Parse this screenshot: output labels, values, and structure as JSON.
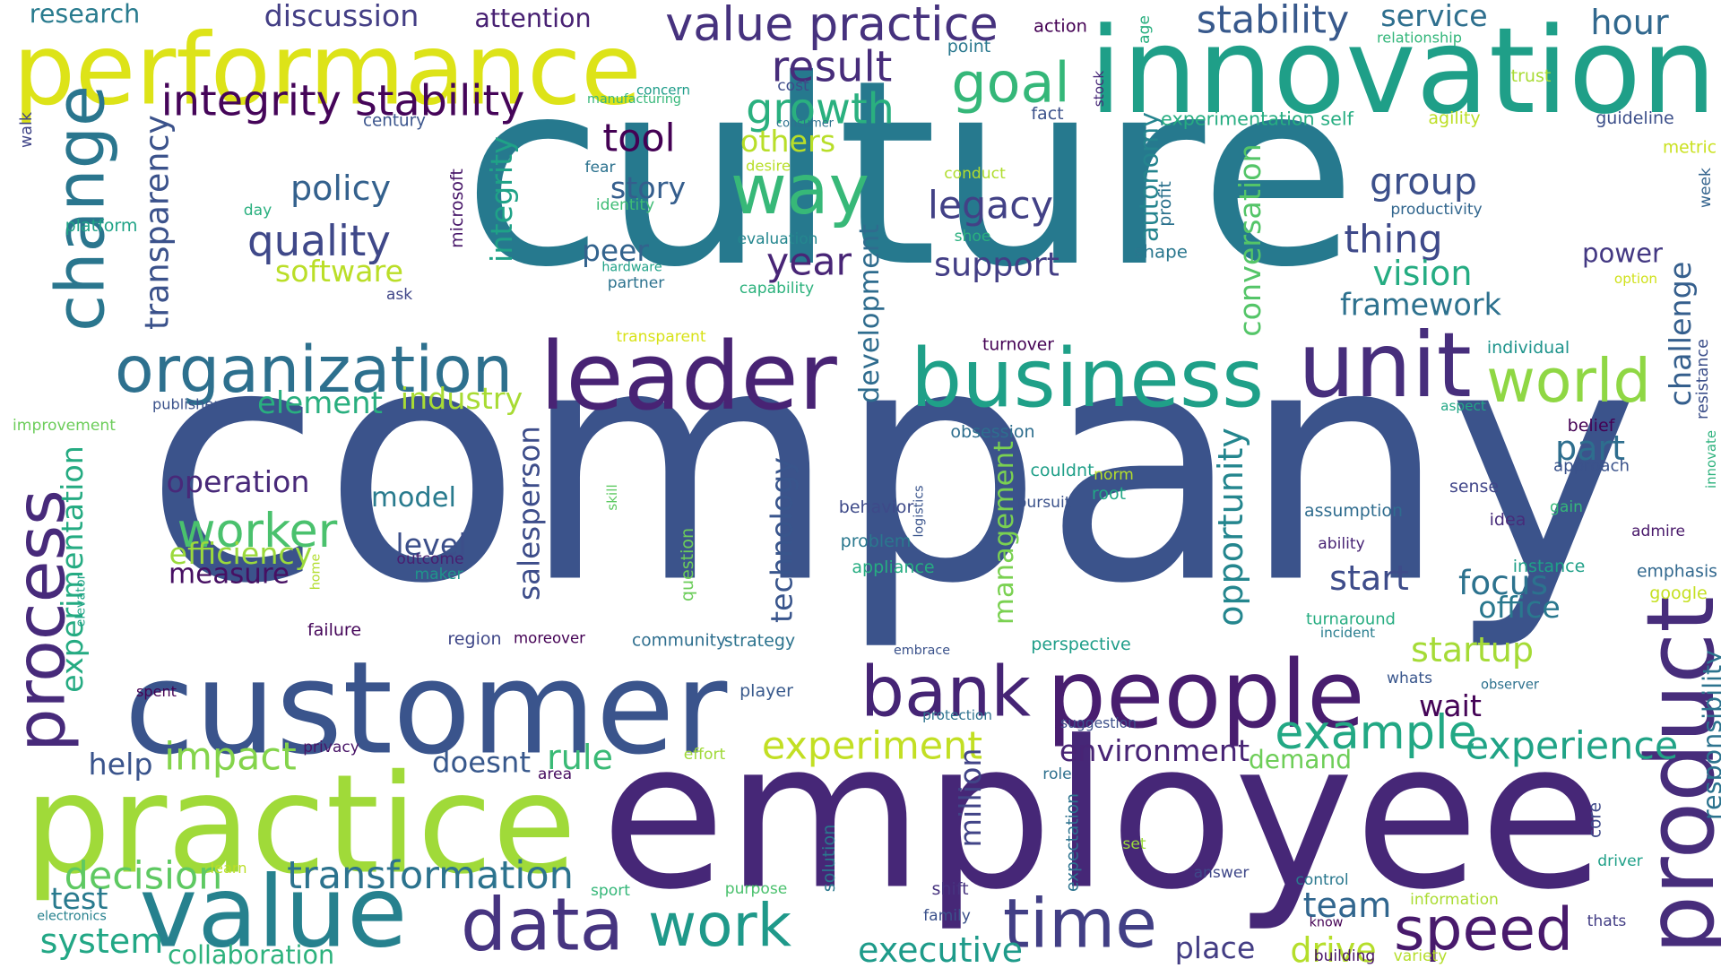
{
  "words": [
    {
      "text": "culture",
      "color": "#26798e"
    },
    {
      "text": "company",
      "color": "#3b538b"
    },
    {
      "text": "employee",
      "color": "#462777"
    },
    {
      "text": "innovation",
      "color": "#1f9f88"
    },
    {
      "text": "performance",
      "color": "#dde318"
    },
    {
      "text": "customer",
      "color": "#3a548c"
    },
    {
      "text": "practice",
      "color": "#a0da39"
    },
    {
      "text": "value",
      "color": "#26818e"
    },
    {
      "text": "leader",
      "color": "#482374"
    },
    {
      "text": "unit",
      "color": "#472e7c"
    },
    {
      "text": "business",
      "color": "#1fa088"
    },
    {
      "text": "people",
      "color": "#481d6f"
    },
    {
      "text": "bank",
      "color": "#452475"
    },
    {
      "text": "product",
      "color": "#472d7b"
    },
    {
      "text": "change",
      "color": "#2a768e"
    },
    {
      "text": "process",
      "color": "#472a7a"
    },
    {
      "text": "organization",
      "color": "#2d708e"
    },
    {
      "text": "data",
      "color": "#463480"
    },
    {
      "text": "time",
      "color": "#423f85"
    },
    {
      "text": "work",
      "color": "#1f998a"
    },
    {
      "text": "speed",
      "color": "#481a6c"
    },
    {
      "text": "way",
      "color": "#37b878"
    },
    {
      "text": "value practice",
      "color": "#46327e"
    },
    {
      "text": "goal",
      "color": "#35b779"
    },
    {
      "text": "world",
      "color": "#8fd744"
    },
    {
      "text": "integrity stability",
      "color": "#450559"
    },
    {
      "text": "stability",
      "color": "#38598c"
    },
    {
      "text": "growth",
      "color": "#2ab07f"
    },
    {
      "text": "result",
      "color": "#472c7a"
    },
    {
      "text": "hour",
      "color": "#31688e"
    },
    {
      "text": "tool",
      "color": "#440154"
    },
    {
      "text": "example",
      "color": "#22a884"
    },
    {
      "text": "experience",
      "color": "#20a386"
    },
    {
      "text": "transformation",
      "color": "#2c738e"
    },
    {
      "text": "decision",
      "color": "#5ec962"
    },
    {
      "text": "impact",
      "color": "#84d44b"
    },
    {
      "text": "worker",
      "color": "#4ac16d"
    },
    {
      "text": "executive",
      "color": "#1e9b8a"
    },
    {
      "text": "drive",
      "color": "#b5de2b"
    },
    {
      "text": "experiment",
      "color": "#c2df23"
    },
    {
      "text": "startup",
      "color": "#a5db36"
    },
    {
      "text": "team",
      "color": "#31668e"
    },
    {
      "text": "system",
      "color": "#22a785"
    },
    {
      "text": "rule",
      "color": "#3aba76"
    },
    {
      "text": "quality",
      "color": "#3f4889"
    },
    {
      "text": "policy",
      "color": "#34618d"
    },
    {
      "text": "legacy",
      "color": "#424186"
    },
    {
      "text": "support",
      "color": "#433e85"
    },
    {
      "text": "group",
      "color": "#3c508b"
    },
    {
      "text": "thing",
      "color": "#3e4989"
    },
    {
      "text": "vision",
      "color": "#25ac82"
    },
    {
      "text": "framework",
      "color": "#2d718e"
    },
    {
      "text": "year",
      "color": "#482576"
    },
    {
      "text": "peer",
      "color": "#33638d"
    },
    {
      "text": "story",
      "color": "#355e8d"
    },
    {
      "text": "others",
      "color": "#b8de29"
    },
    {
      "text": "software",
      "color": "#bade28"
    },
    {
      "text": "element",
      "color": "#29af7f"
    },
    {
      "text": "industry",
      "color": "#a8db34"
    },
    {
      "text": "operation",
      "color": "#482979"
    },
    {
      "text": "efficiency",
      "color": "#9bd93c"
    },
    {
      "text": "measure",
      "color": "#471063"
    },
    {
      "text": "model",
      "color": "#297b8e"
    },
    {
      "text": "level",
      "color": "#3c4f8a"
    },
    {
      "text": "office",
      "color": "#2a788e"
    },
    {
      "text": "focus",
      "color": "#2c728e"
    },
    {
      "text": "start",
      "color": "#3e4c8a"
    },
    {
      "text": "part",
      "color": "#2e6e8e"
    },
    {
      "text": "power",
      "color": "#443983"
    },
    {
      "text": "environment",
      "color": "#482475"
    },
    {
      "text": "demand",
      "color": "#6ece58"
    },
    {
      "text": "wait",
      "color": "#450457"
    },
    {
      "text": "place",
      "color": "#433d84"
    },
    {
      "text": "doesnt",
      "color": "#38588c"
    },
    {
      "text": "help",
      "color": "#3a548c"
    },
    {
      "text": "test",
      "color": "#297a8e"
    },
    {
      "text": "collaboration",
      "color": "#2db27d"
    },
    {
      "text": "transparency",
      "color": "#3b528b"
    },
    {
      "text": "experimentation",
      "color": "#25ab82"
    },
    {
      "text": "integrity",
      "color": "#1fa287"
    },
    {
      "text": "development",
      "color": "#2f6c8e"
    },
    {
      "text": "conversation",
      "color": "#54c568"
    },
    {
      "text": "autonomy",
      "color": "#25848e"
    },
    {
      "text": "opportunity",
      "color": "#24868e"
    },
    {
      "text": "management",
      "color": "#7ad151"
    },
    {
      "text": "technology",
      "color": "#39558c"
    },
    {
      "text": "salesperson",
      "color": "#3d4d8a"
    },
    {
      "text": "million",
      "color": "#414487"
    },
    {
      "text": "responsibility",
      "color": "#2c738e"
    },
    {
      "text": "challenge",
      "color": "#355f8d"
    },
    {
      "text": "discussion",
      "color": "#433e85"
    },
    {
      "text": "attention",
      "color": "#482173"
    },
    {
      "text": "research",
      "color": "#297b8e"
    },
    {
      "text": "service",
      "color": "#2e6f8e"
    },
    {
      "text": "microsoft",
      "color": "#481769"
    },
    {
      "text": "profit",
      "color": "#2c728e"
    },
    {
      "text": "shape",
      "color": "#2a778e"
    },
    {
      "text": "action",
      "color": "#440154"
    },
    {
      "text": "age",
      "color": "#29af7f"
    },
    {
      "text": "point",
      "color": "#2a788e"
    },
    {
      "text": "relationship",
      "color": "#32b67a"
    },
    {
      "text": "manufacturing",
      "color": "#35b779"
    },
    {
      "text": "concern",
      "color": "#1e9c89"
    },
    {
      "text": "cost",
      "color": "#3e4c8a"
    },
    {
      "text": "consumer",
      "color": "#2d718e"
    },
    {
      "text": "stock",
      "color": "#482878"
    },
    {
      "text": "trust",
      "color": "#a8db34"
    },
    {
      "text": "experimentation self",
      "color": "#26ad81"
    },
    {
      "text": "agility",
      "color": "#bddf26"
    },
    {
      "text": "guideline",
      "color": "#3c4f8a"
    },
    {
      "text": "metric",
      "color": "#cae11f"
    },
    {
      "text": "week",
      "color": "#33638d"
    },
    {
      "text": "fact",
      "color": "#3b518b"
    },
    {
      "text": "century",
      "color": "#3a548c"
    },
    {
      "text": "walk",
      "color": "#404588"
    },
    {
      "text": "fear",
      "color": "#2c728e"
    },
    {
      "text": "desire",
      "color": "#b8de29"
    },
    {
      "text": "identity",
      "color": "#3dbc74"
    },
    {
      "text": "conduct",
      "color": "#b0dd2f"
    },
    {
      "text": "productivity",
      "color": "#31668e"
    },
    {
      "text": "day",
      "color": "#2ab07f"
    },
    {
      "text": "platform",
      "color": "#20a386"
    },
    {
      "text": "shoe",
      "color": "#2ab07f"
    },
    {
      "text": "evaluation",
      "color": "#24868e"
    },
    {
      "text": "hardware",
      "color": "#1fa187"
    },
    {
      "text": "partner",
      "color": "#2c728e"
    },
    {
      "text": "capability",
      "color": "#2db27d"
    },
    {
      "text": "option",
      "color": "#d0e11c"
    },
    {
      "text": "ask",
      "color": "#404688"
    },
    {
      "text": "transparent",
      "color": "#d8e219"
    },
    {
      "text": "turnover",
      "color": "#440154"
    },
    {
      "text": "individual",
      "color": "#1f948c"
    },
    {
      "text": "publisher",
      "color": "#3b528b"
    },
    {
      "text": "improvement",
      "color": "#6ccd5a"
    },
    {
      "text": "aspect",
      "color": "#22a785"
    },
    {
      "text": "resistance",
      "color": "#3c4f8a"
    },
    {
      "text": "obsession",
      "color": "#2e6e8e"
    },
    {
      "text": "belief",
      "color": "#440154"
    },
    {
      "text": "approach",
      "color": "#3b528b"
    },
    {
      "text": "innovate",
      "color": "#2db27d"
    },
    {
      "text": "couldnt",
      "color": "#1f9f88"
    },
    {
      "text": "norm",
      "color": "#b5de2b"
    },
    {
      "text": "root",
      "color": "#22a785"
    },
    {
      "text": "sense",
      "color": "#404588"
    },
    {
      "text": "skill",
      "color": "#5ec962"
    },
    {
      "text": "logistics",
      "color": "#3a548c"
    },
    {
      "text": "pursuit",
      "color": "#3b528b"
    },
    {
      "text": "behavior",
      "color": "#3e4a89"
    },
    {
      "text": "assumption",
      "color": "#2f6c8e"
    },
    {
      "text": "gain",
      "color": "#35b779"
    },
    {
      "text": "idea",
      "color": "#472c7a"
    },
    {
      "text": "problem",
      "color": "#2a788e"
    },
    {
      "text": "ability",
      "color": "#482475"
    },
    {
      "text": "admire",
      "color": "#48186a"
    },
    {
      "text": "outcome",
      "color": "#481f70"
    },
    {
      "text": "maker",
      "color": "#1f958b"
    },
    {
      "text": "home",
      "color": "#b2dd2d"
    },
    {
      "text": "question",
      "color": "#6ccd5a"
    },
    {
      "text": "appliance",
      "color": "#26ad81"
    },
    {
      "text": "instance",
      "color": "#1fa088"
    },
    {
      "text": "emphasis",
      "color": "#31688e"
    },
    {
      "text": "google",
      "color": "#c5e021"
    },
    {
      "text": "elevator",
      "color": "#20a486"
    },
    {
      "text": "failure",
      "color": "#46075a"
    },
    {
      "text": "region",
      "color": "#3f4788"
    },
    {
      "text": "moreover",
      "color": "#440154"
    },
    {
      "text": "community",
      "color": "#2e6e8e"
    },
    {
      "text": "strategy",
      "color": "#2c738e"
    },
    {
      "text": "turnaround",
      "color": "#27ad81"
    },
    {
      "text": "incident",
      "color": "#287d8e"
    },
    {
      "text": "perspective",
      "color": "#1f9e89"
    },
    {
      "text": "embrace",
      "color": "#3b528b"
    },
    {
      "text": "whats",
      "color": "#39568c"
    },
    {
      "text": "observer",
      "color": "#2c718e"
    },
    {
      "text": "spent",
      "color": "#440154"
    },
    {
      "text": "player",
      "color": "#38598c"
    },
    {
      "text": "protection",
      "color": "#2c728e"
    },
    {
      "text": "suggestion",
      "color": "#3c4f8a"
    },
    {
      "text": "privacy",
      "color": "#481467"
    },
    {
      "text": "effort",
      "color": "#a0da39"
    },
    {
      "text": "area",
      "color": "#470d60"
    },
    {
      "text": "role",
      "color": "#2e6f8e"
    },
    {
      "text": "expectation",
      "color": "#2c728e"
    },
    {
      "text": "core",
      "color": "#3e4989"
    },
    {
      "text": "solution",
      "color": "#2a788e"
    },
    {
      "text": "set",
      "color": "#9bd93c"
    },
    {
      "text": "driver",
      "color": "#1fa088"
    },
    {
      "text": "learn",
      "color": "#bade28"
    },
    {
      "text": "sport",
      "color": "#35b779"
    },
    {
      "text": "purpose",
      "color": "#4ac16d"
    },
    {
      "text": "shift",
      "color": "#46337f"
    },
    {
      "text": "answer",
      "color": "#3f4889"
    },
    {
      "text": "control",
      "color": "#2a788e"
    },
    {
      "text": "information",
      "color": "#aadc32"
    },
    {
      "text": "electronics",
      "color": "#26818e"
    },
    {
      "text": "family",
      "color": "#3b518b"
    },
    {
      "text": "know",
      "color": "#440154"
    },
    {
      "text": "thats",
      "color": "#433e85"
    },
    {
      "text": "building",
      "color": "#481467"
    },
    {
      "text": "variety",
      "color": "#b5de2b"
    }
  ]
}
